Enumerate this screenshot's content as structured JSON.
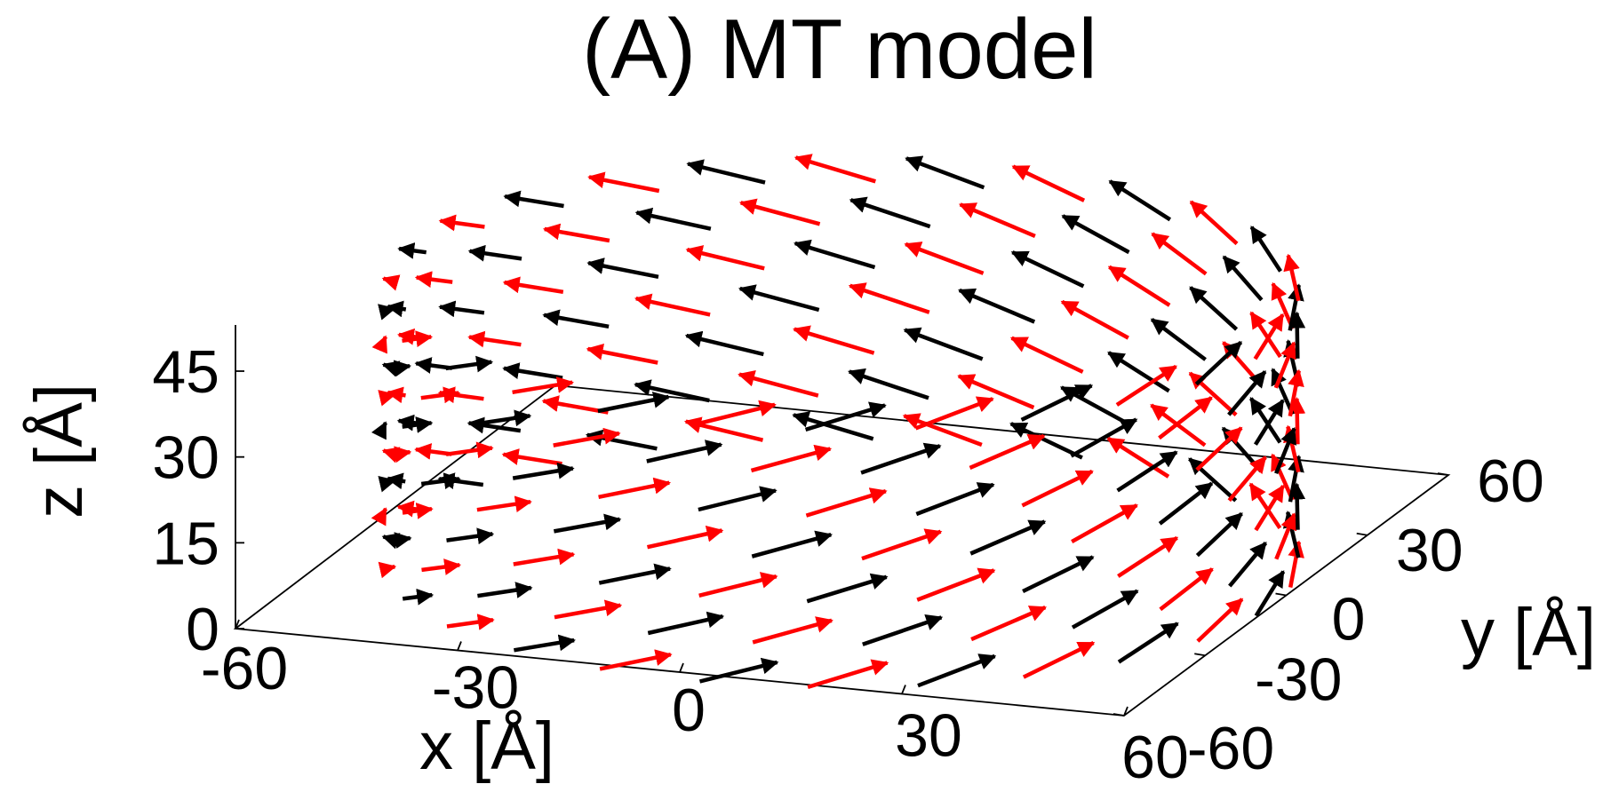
{
  "chart_data": {
    "type": "3d-vector-field",
    "title": "(A) MT model",
    "xlabel": "x [Å]",
    "ylabel": "y [Å]",
    "zlabel": "z [Å]",
    "xlim": [
      -60,
      60
    ],
    "ylim": [
      -60,
      60
    ],
    "zlim": [
      0,
      45
    ],
    "x_ticks": [
      "-60",
      "-30",
      "0",
      "30",
      "60"
    ],
    "y_ticks": [
      "-60",
      "-30",
      "0",
      "30",
      "60"
    ],
    "z_ticks": [
      "0",
      "15",
      "30",
      "45"
    ],
    "grid": false,
    "structure": {
      "shape": "helical cylinder",
      "radius": 58,
      "z_levels": [
        0,
        7.5,
        15,
        22.5,
        30,
        37.5,
        45
      ],
      "vectors_per_level": 26,
      "vector_direction": "counter-clockwise tangent around z axis",
      "alternating_colors": [
        "#000000",
        "#ff0000"
      ]
    }
  }
}
